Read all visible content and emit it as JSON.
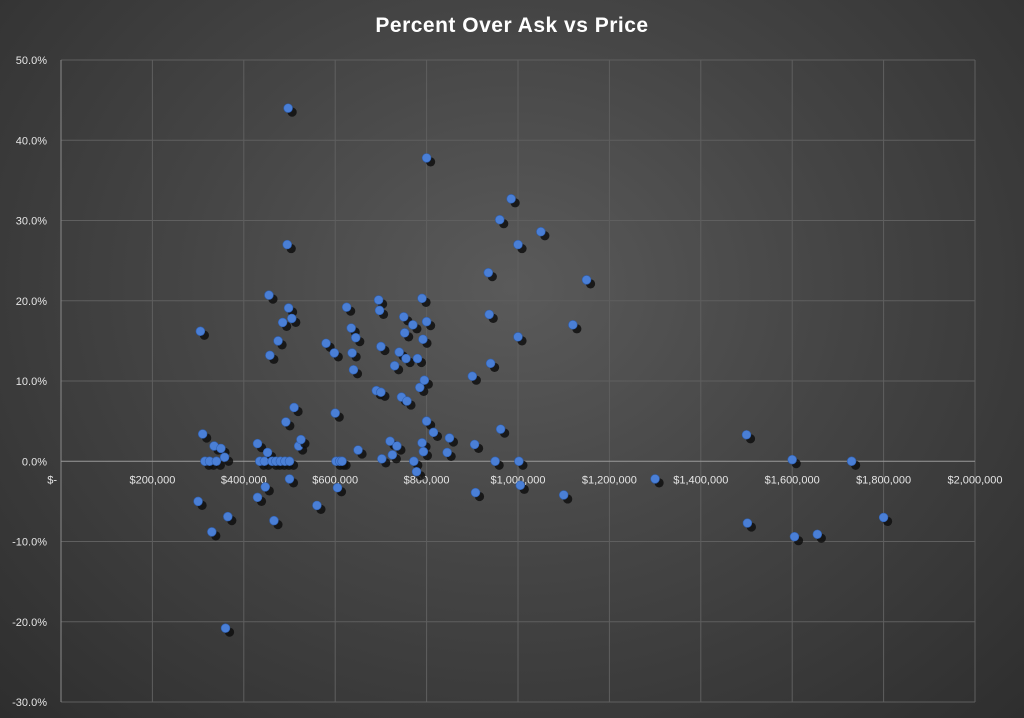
{
  "chart_data": {
    "type": "scatter",
    "title": "Percent Over Ask vs Price",
    "xlabel": "",
    "ylabel": "",
    "xlim": [
      0,
      2000000
    ],
    "ylim": [
      -30,
      50
    ],
    "x_ticks": [
      0,
      200000,
      400000,
      600000,
      800000,
      1000000,
      1200000,
      1400000,
      1600000,
      1800000,
      2000000
    ],
    "x_tick_labels": [
      "$-",
      "$200,000",
      "$400,000",
      "$600,000",
      "$800,000",
      "$1,000,000",
      "$1,200,000",
      "$1,400,000",
      "$1,600,000",
      "$1,800,000",
      "$2,000,000"
    ],
    "y_ticks": [
      -30,
      -20,
      -10,
      0,
      10,
      20,
      30,
      40,
      50
    ],
    "y_tick_labels": [
      "-30.0%",
      "-20.0%",
      "-10.0%",
      "0.0%",
      "10.0%",
      "20.0%",
      "30.0%",
      "40.0%",
      "50.0%"
    ],
    "grid": true,
    "legend": "none",
    "colors": {
      "point": "#4a7fd6",
      "background": "#444444",
      "text": "#ffffff"
    },
    "points": [
      [
        300000,
        -5
      ],
      [
        305000,
        16.2
      ],
      [
        310000,
        3.4
      ],
      [
        315000,
        0
      ],
      [
        325000,
        0
      ],
      [
        330000,
        -8.8
      ],
      [
        335000,
        1.9
      ],
      [
        340000,
        0
      ],
      [
        350000,
        1.6
      ],
      [
        358000,
        0.5
      ],
      [
        360000,
        -20.8
      ],
      [
        365000,
        -6.9
      ],
      [
        430000,
        2.2
      ],
      [
        430000,
        -4.5
      ],
      [
        435000,
        0
      ],
      [
        445000,
        0
      ],
      [
        447000,
        -3.2
      ],
      [
        452000,
        1.1
      ],
      [
        455000,
        20.7
      ],
      [
        457000,
        13.2
      ],
      [
        462000,
        0
      ],
      [
        466000,
        -7.4
      ],
      [
        470000,
        0
      ],
      [
        475000,
        15
      ],
      [
        480000,
        0
      ],
      [
        485000,
        17.3
      ],
      [
        490000,
        0
      ],
      [
        492000,
        4.9
      ],
      [
        495000,
        27
      ],
      [
        497000,
        44
      ],
      [
        498000,
        19.1
      ],
      [
        500000,
        0
      ],
      [
        500000,
        -2.2
      ],
      [
        505000,
        17.8
      ],
      [
        510000,
        6.7
      ],
      [
        520000,
        1.9
      ],
      [
        525000,
        2.7
      ],
      [
        560000,
        -5.5
      ],
      [
        580000,
        14.7
      ],
      [
        598000,
        13.5
      ],
      [
        600000,
        6
      ],
      [
        602000,
        0
      ],
      [
        605000,
        -3.3
      ],
      [
        610000,
        0
      ],
      [
        615000,
        0
      ],
      [
        625000,
        19.2
      ],
      [
        635000,
        16.6
      ],
      [
        637000,
        13.5
      ],
      [
        640000,
        11.4
      ],
      [
        645000,
        15.4
      ],
      [
        650000,
        1.4
      ],
      [
        690000,
        8.8
      ],
      [
        695000,
        20.1
      ],
      [
        697000,
        18.8
      ],
      [
        700000,
        14.3
      ],
      [
        700000,
        8.6
      ],
      [
        702000,
        0.3
      ],
      [
        720000,
        2.5
      ],
      [
        725000,
        0.8
      ],
      [
        730000,
        11.9
      ],
      [
        735000,
        1.9
      ],
      [
        740000,
        13.6
      ],
      [
        745000,
        8
      ],
      [
        750000,
        18
      ],
      [
        752000,
        16
      ],
      [
        755000,
        12.8
      ],
      [
        757000,
        7.5
      ],
      [
        770000,
        17
      ],
      [
        772000,
        0
      ],
      [
        778000,
        -1.3
      ],
      [
        780000,
        12.8
      ],
      [
        785000,
        9.2
      ],
      [
        790000,
        2.3
      ],
      [
        790000,
        20.3
      ],
      [
        792000,
        15.2
      ],
      [
        793000,
        1.2
      ],
      [
        795000,
        10.1
      ],
      [
        800000,
        37.8
      ],
      [
        800000,
        17.4
      ],
      [
        800000,
        5
      ],
      [
        815000,
        3.6
      ],
      [
        845000,
        1.1
      ],
      [
        850000,
        2.9
      ],
      [
        900000,
        10.6
      ],
      [
        905000,
        2.1
      ],
      [
        907000,
        -3.9
      ],
      [
        935000,
        23.5
      ],
      [
        937000,
        18.3
      ],
      [
        940000,
        12.2
      ],
      [
        950000,
        0
      ],
      [
        960000,
        30.1
      ],
      [
        962000,
        4
      ],
      [
        985000,
        32.7
      ],
      [
        1000000,
        27
      ],
      [
        1000000,
        15.5
      ],
      [
        1002000,
        0
      ],
      [
        1005000,
        -3
      ],
      [
        1050000,
        28.6
      ],
      [
        1100000,
        -4.2
      ],
      [
        1120000,
        17
      ],
      [
        1150000,
        22.6
      ],
      [
        1300000,
        -2.2
      ],
      [
        1500000,
        3.3
      ],
      [
        1502000,
        -7.7
      ],
      [
        1600000,
        0.2
      ],
      [
        1605000,
        -9.4
      ],
      [
        1655000,
        -9.1
      ],
      [
        1730000,
        0
      ],
      [
        1800000,
        -7
      ]
    ]
  }
}
